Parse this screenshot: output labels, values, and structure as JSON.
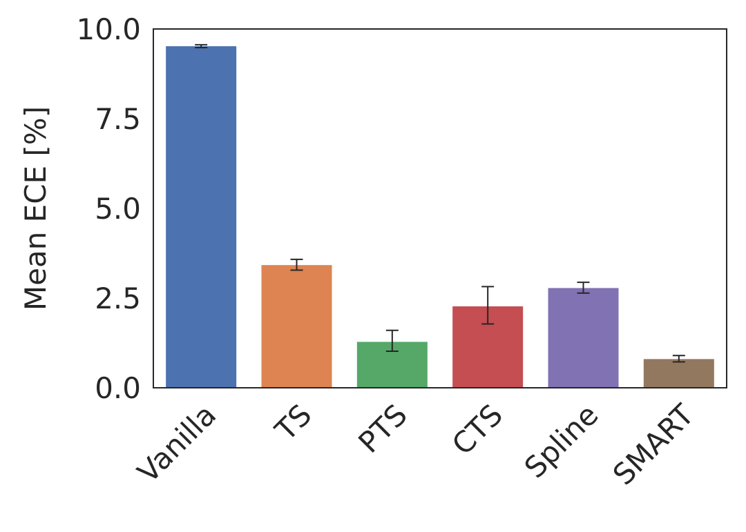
{
  "chart_data": {
    "type": "bar",
    "title": "",
    "xlabel": "",
    "ylabel": "Mean ECE [%]",
    "ylim": [
      0,
      10
    ],
    "yticks": [
      "0.0",
      "2.5",
      "5.0",
      "7.5",
      "10.0"
    ],
    "grid": false,
    "categories": [
      "Vanilla",
      "TS",
      "PTS",
      "CTS",
      "Spline",
      "SMART"
    ],
    "values": [
      9.52,
      3.42,
      1.28,
      2.27,
      2.78,
      0.8
    ],
    "error_low": [
      9.48,
      3.28,
      1.02,
      1.78,
      2.64,
      0.72
    ],
    "error_high": [
      9.56,
      3.58,
      1.6,
      2.82,
      2.94,
      0.9
    ],
    "colors": [
      "#4c72b0",
      "#dd8452",
      "#55a868",
      "#c44e52",
      "#8172b3",
      "#937860"
    ]
  }
}
